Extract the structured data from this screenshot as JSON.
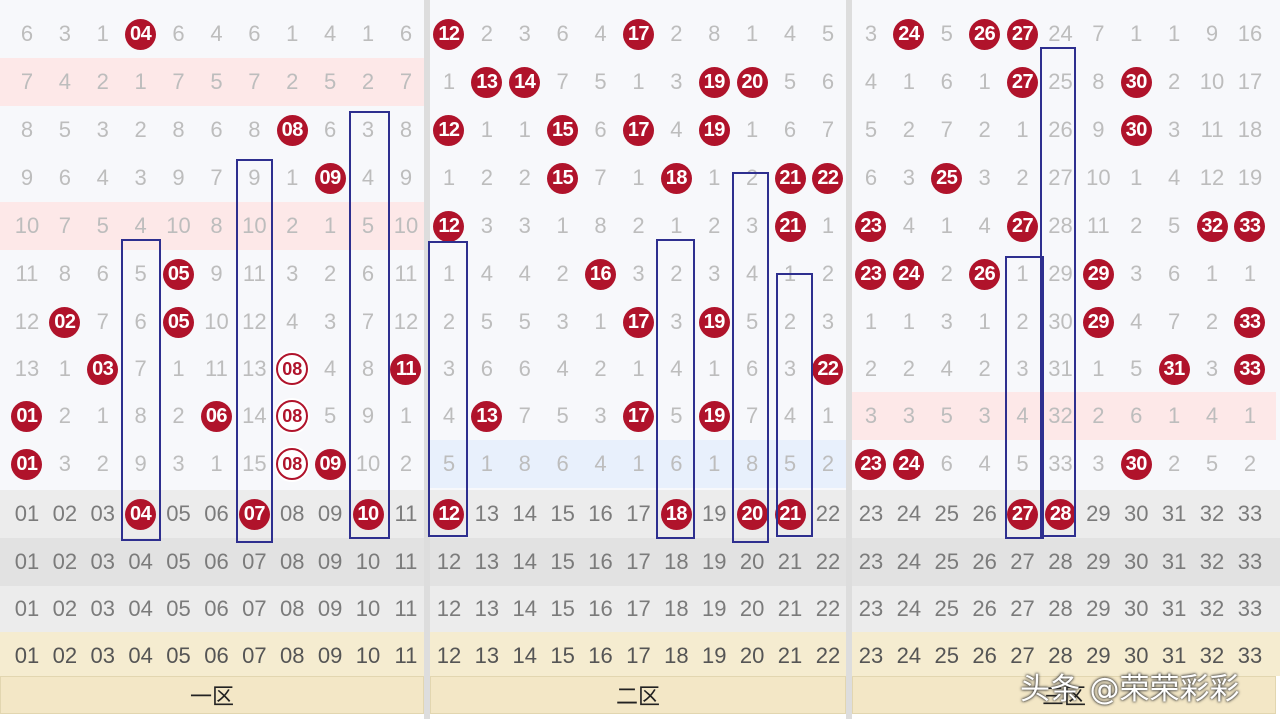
{
  "rows": [
    [
      "6",
      "3",
      "1",
      "04",
      "6",
      "4",
      "6",
      "1",
      "4",
      "1",
      "6",
      "12",
      "2",
      "3",
      "6",
      "4",
      "17",
      "2",
      "8",
      "1",
      "4",
      "5",
      "3",
      "24",
      "5",
      "26",
      "27",
      "24",
      "7",
      "1",
      "1",
      "9",
      "16"
    ],
    [
      "7",
      "4",
      "2",
      "1",
      "7",
      "5",
      "7",
      "2",
      "5",
      "2",
      "7",
      "1",
      "13",
      "14",
      "7",
      "5",
      "1",
      "3",
      "19",
      "20",
      "5",
      "6",
      "4",
      "1",
      "6",
      "1",
      "27",
      "25",
      "8",
      "30",
      "2",
      "10",
      "17"
    ],
    [
      "8",
      "5",
      "3",
      "2",
      "8",
      "6",
      "8",
      "08",
      "6",
      "3",
      "8",
      "12",
      "1",
      "1",
      "15",
      "6",
      "17",
      "4",
      "19",
      "1",
      "6",
      "7",
      "5",
      "2",
      "7",
      "2",
      "1",
      "26",
      "9",
      "30",
      "3",
      "11",
      "18"
    ],
    [
      "9",
      "6",
      "4",
      "3",
      "9",
      "7",
      "9",
      "1",
      "09",
      "4",
      "9",
      "1",
      "2",
      "2",
      "15",
      "7",
      "1",
      "18",
      "1",
      "2",
      "21",
      "22",
      "6",
      "3",
      "25",
      "3",
      "2",
      "27",
      "10",
      "1",
      "4",
      "12",
      "19"
    ],
    [
      "10",
      "7",
      "5",
      "4",
      "10",
      "8",
      "10",
      "2",
      "1",
      "5",
      "10",
      "12",
      "3",
      "3",
      "1",
      "8",
      "2",
      "1",
      "2",
      "3",
      "21",
      "1",
      "23",
      "4",
      "1",
      "4",
      "27",
      "28",
      "11",
      "2",
      "5",
      "32",
      "33"
    ],
    [
      "11",
      "8",
      "6",
      "5",
      "05",
      "9",
      "11",
      "3",
      "2",
      "6",
      "11",
      "1",
      "4",
      "4",
      "2",
      "16",
      "3",
      "2",
      "3",
      "4",
      "1",
      "2",
      "23",
      "24",
      "2",
      "26",
      "1",
      "29",
      "29",
      "3",
      "6",
      "1",
      "1"
    ],
    [
      "12",
      "02",
      "7",
      "6",
      "05",
      "10",
      "12",
      "4",
      "3",
      "7",
      "12",
      "2",
      "5",
      "5",
      "3",
      "1",
      "17",
      "3",
      "19",
      "5",
      "2",
      "3",
      "1",
      "1",
      "3",
      "1",
      "2",
      "30",
      "29",
      "4",
      "7",
      "2",
      "33"
    ],
    [
      "13",
      "1",
      "03",
      "7",
      "1",
      "11",
      "13",
      "08",
      "4",
      "8",
      "11",
      "3",
      "6",
      "6",
      "4",
      "2",
      "1",
      "4",
      "1",
      "6",
      "3",
      "22",
      "2",
      "2",
      "4",
      "2",
      "3",
      "31",
      "1",
      "5",
      "31",
      "3",
      "33"
    ],
    [
      "01",
      "2",
      "1",
      "8",
      "2",
      "06",
      "14",
      "08",
      "5",
      "9",
      "1",
      "4",
      "13",
      "7",
      "5",
      "3",
      "17",
      "5",
      "19",
      "7",
      "4",
      "1",
      "3",
      "3",
      "5",
      "3",
      "4",
      "32",
      "2",
      "6",
      "1",
      "4",
      "1"
    ],
    [
      "01",
      "3",
      "2",
      "9",
      "3",
      "1",
      "15",
      "08",
      "09",
      "10",
      "2",
      "5",
      "1",
      "8",
      "6",
      "4",
      "1",
      "6",
      "1",
      "8",
      "5",
      "2",
      "23",
      "24",
      "6",
      "4",
      "5",
      "33",
      "3",
      "30",
      "2",
      "5",
      "2"
    ],
    [
      "01",
      "02",
      "03",
      "04",
      "05",
      "06",
      "07",
      "08",
      "09",
      "10",
      "11",
      "12",
      "13",
      "14",
      "15",
      "16",
      "17",
      "18",
      "19",
      "20",
      "21",
      "22",
      "23",
      "24",
      "25",
      "26",
      "27",
      "28",
      "29",
      "30",
      "31",
      "32",
      "33"
    ],
    [
      "01",
      "02",
      "03",
      "04",
      "05",
      "06",
      "07",
      "08",
      "09",
      "10",
      "11",
      "12",
      "13",
      "14",
      "15",
      "16",
      "17",
      "18",
      "19",
      "20",
      "21",
      "22",
      "23",
      "24",
      "25",
      "26",
      "27",
      "28",
      "29",
      "30",
      "31",
      "32",
      "33"
    ],
    [
      "01",
      "02",
      "03",
      "04",
      "05",
      "06",
      "07",
      "08",
      "09",
      "10",
      "11",
      "12",
      "13",
      "14",
      "15",
      "16",
      "17",
      "18",
      "19",
      "20",
      "21",
      "22",
      "23",
      "24",
      "25",
      "26",
      "27",
      "28",
      "29",
      "30",
      "31",
      "32",
      "33"
    ],
    [
      "01",
      "02",
      "03",
      "04",
      "05",
      "06",
      "07",
      "08",
      "09",
      "10",
      "11",
      "12",
      "13",
      "14",
      "15",
      "16",
      "17",
      "18",
      "19",
      "20",
      "21",
      "22",
      "23",
      "24",
      "25",
      "26",
      "27",
      "28",
      "29",
      "30",
      "31",
      "32",
      "33"
    ]
  ],
  "zones": [
    "一区",
    "二区",
    "三区"
  ],
  "watermark": "头条 @荣荣彩彩"
}
